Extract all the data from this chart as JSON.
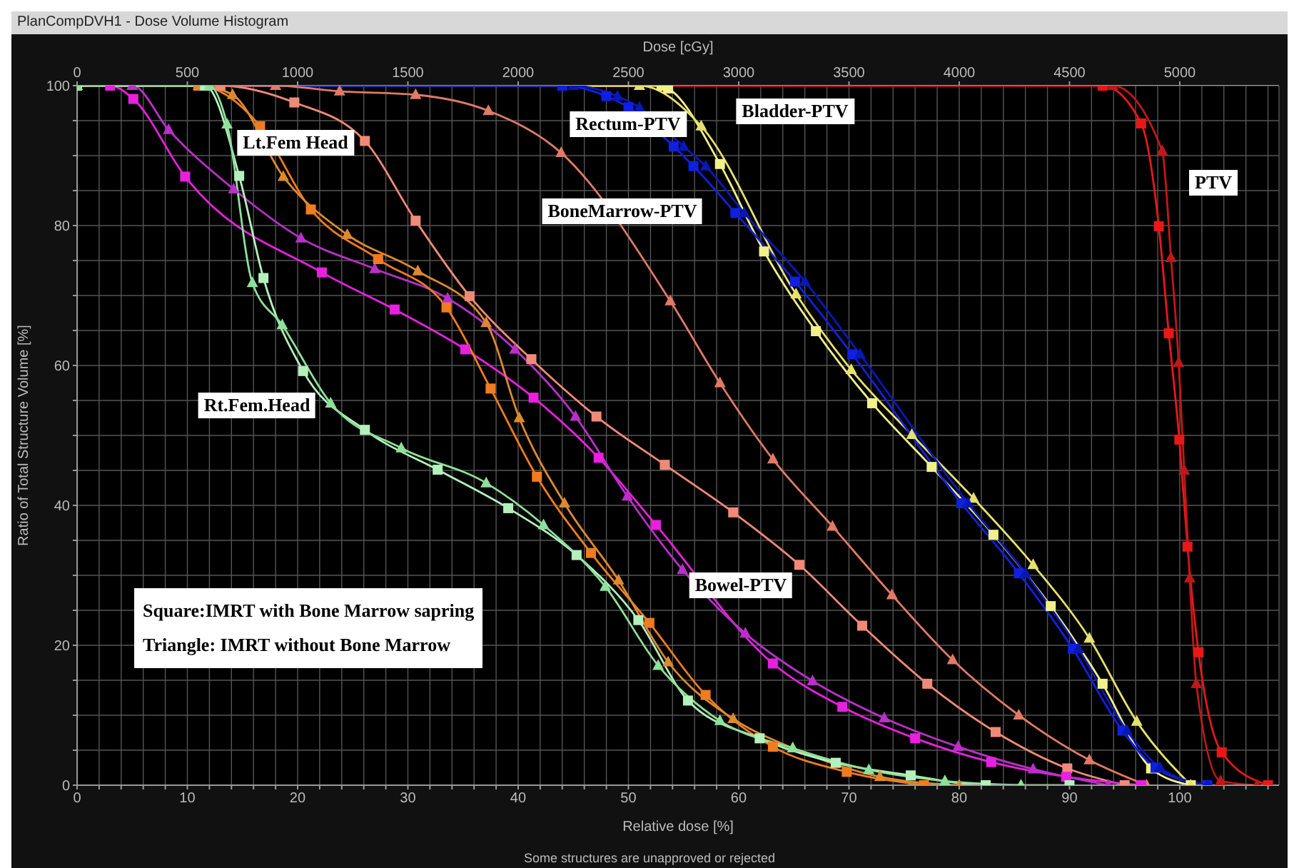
{
  "chart_data": {
    "type": "line",
    "title": "PlanCompDVH1 - Dose Volume Histogram",
    "xlabel": "Relative dose [%]",
    "x2label": "Dose [cGy]",
    "ylabel": "Ratio of Total Structure Volume [%]",
    "xlim": [
      0,
      109
    ],
    "ylim": [
      0,
      100
    ],
    "x2lim": [
      0,
      5450
    ],
    "xticks": [
      0,
      {
        "value": 2,
        "label": null
      },
      {
        "value": 4,
        "label": null
      },
      {
        "value": 6,
        "label": null
      },
      {
        "value": 8,
        "label": null
      },
      10,
      {
        "value": 12,
        "label": null
      },
      {
        "value": 14,
        "label": null
      },
      {
        "value": 16,
        "label": null
      },
      {
        "value": 18,
        "label": null
      },
      20,
      {
        "value": 22,
        "label": null
      },
      {
        "value": 24,
        "label": null
      },
      {
        "value": 26,
        "label": null
      },
      {
        "value": 28,
        "label": null
      },
      30,
      {
        "value": 32,
        "label": null
      },
      {
        "value": 34,
        "label": null
      },
      {
        "value": 36,
        "label": null
      },
      {
        "value": 38,
        "label": null
      },
      40,
      {
        "value": 42,
        "label": null
      },
      {
        "value": 44,
        "label": null
      },
      {
        "value": 46,
        "label": null
      },
      {
        "value": 48,
        "label": null
      },
      50,
      {
        "value": 52,
        "label": null
      },
      {
        "value": 54,
        "label": null
      },
      {
        "value": 56,
        "label": null
      },
      {
        "value": 58,
        "label": null
      },
      60,
      {
        "value": 62,
        "label": null
      },
      {
        "value": 64,
        "label": null
      },
      {
        "value": 66,
        "label": null
      },
      {
        "value": 68,
        "label": null
      },
      70,
      {
        "value": 72,
        "label": null
      },
      {
        "value": 74,
        "label": null
      },
      {
        "value": 76,
        "label": null
      },
      {
        "value": 78,
        "label": null
      },
      80,
      {
        "value": 82,
        "label": null
      },
      {
        "value": 84,
        "label": null
      },
      {
        "value": 86,
        "label": null
      },
      {
        "value": 88,
        "label": null
      },
      90,
      {
        "value": 92,
        "label": null
      },
      {
        "value": 94,
        "label": null
      },
      {
        "value": 96,
        "label": null
      },
      {
        "value": 98,
        "label": null
      },
      100,
      {
        "value": 102,
        "label": null
      },
      {
        "value": 104,
        "label": null
      },
      {
        "value": 106,
        "label": null
      },
      {
        "value": 108,
        "label": null
      }
    ],
    "x2ticks": [
      0,
      500,
      1000,
      1500,
      2000,
      2500,
      3000,
      3500,
      4000,
      4500,
      5000
    ],
    "yticks": [
      0,
      {
        "value": 5,
        "label": null
      },
      {
        "value": 10,
        "label": null
      },
      {
        "value": 15,
        "label": null
      },
      20,
      {
        "value": 25,
        "label": null
      },
      {
        "value": 30,
        "label": null
      },
      {
        "value": 35,
        "label": null
      },
      40,
      {
        "value": 45,
        "label": null
      },
      {
        "value": 50,
        "label": null
      },
      {
        "value": 55,
        "label": null
      },
      60,
      {
        "value": 65,
        "label": null
      },
      {
        "value": 70,
        "label": null
      },
      {
        "value": 75,
        "label": null
      },
      80,
      {
        "value": 85,
        "label": null
      },
      {
        "value": 90,
        "label": null
      },
      {
        "value": 95,
        "label": null
      },
      100
    ],
    "grid": true,
    "legend": false,
    "line_style": "solid",
    "series": [
      {
        "color": "#e81818",
        "marker": "square",
        "x": [
          0,
          93,
          96.5,
          98.1,
          99.0,
          99.96,
          100.7,
          101.7,
          103.8,
          108
        ],
        "values": [
          100,
          100,
          94.6,
          79.9,
          64.6,
          49.4,
          34.1,
          19,
          4.7,
          0
        ]
      },
      {
        "color": "#c01818",
        "marker": "triangle",
        "x": [
          0,
          93.9,
          98.4,
          99.2,
          99.9,
          100.4,
          100.9,
          101.5,
          103.7,
          107
        ],
        "values": [
          100,
          100,
          90.7,
          75.4,
          60.4,
          45,
          29.6,
          14.5,
          0.6,
          0
        ]
      },
      {
        "color": "#f2f08a",
        "marker": "square",
        "x": [
          0,
          53,
          53.6,
          58.3,
          62.3,
          67,
          72.1,
          77.5,
          83.1,
          88.3,
          93,
          97.4,
          101
        ],
        "values": [
          100,
          100,
          99.6,
          88.8,
          76.3,
          64.9,
          54.6,
          45.5,
          35.8,
          25.6,
          14.5,
          2.4,
          0
        ]
      },
      {
        "color": "#e6e070",
        "marker": "triangle",
        "x": [
          0,
          51,
          56.6,
          65.2,
          70.2,
          75.7,
          81.3,
          86.7,
          91.8,
          96.1,
          101
        ],
        "values": [
          100,
          100,
          94.2,
          70.2,
          59.4,
          50.1,
          41,
          31.5,
          21,
          9.1,
          0
        ]
      },
      {
        "color": "#1020e0",
        "marker": "square",
        "x": [
          0,
          44,
          48,
          50,
          54.1,
          55.9,
          59.7,
          65.1,
          70.3,
          80.2,
          85.4,
          90.3,
          94.8,
          97.8,
          102.5
        ],
        "values": [
          100,
          100,
          98.5,
          96.9,
          91.3,
          88.5,
          81.8,
          72,
          61.6,
          40.3,
          30.3,
          19.5,
          7.8,
          2.5,
          0
        ]
      },
      {
        "color": "#0818b8",
        "marker": "triangle",
        "x": [
          0,
          45,
          49,
          51,
          55,
          57,
          60.5,
          66,
          71,
          80.8,
          86,
          90.8,
          95.2,
          98.2,
          102.5
        ],
        "values": [
          100,
          100,
          98.5,
          96.9,
          91.3,
          88.5,
          81.8,
          72,
          61.6,
          40.3,
          30.3,
          19.5,
          7.8,
          2.5,
          0
        ]
      },
      {
        "color": "#f08a78",
        "marker": "square",
        "x": [
          0,
          13,
          19.7,
          26.1,
          30.7,
          35.6,
          41.2,
          47.1,
          53.3,
          59.5,
          65.5,
          71.2,
          77.1,
          83.3,
          89.8,
          95
        ],
        "values": [
          100,
          100,
          97.6,
          92.1,
          80.7,
          69.9,
          60.9,
          52.7,
          45.8,
          39,
          31.5,
          22.8,
          14.5,
          7.6,
          2.4,
          0
        ]
      },
      {
        "color": "#e07a66",
        "marker": "triangle",
        "x": [
          0,
          18,
          23.8,
          30.7,
          37.3,
          43.9,
          53.8,
          58.3,
          63.1,
          68.5,
          73.9,
          79.4,
          85.4,
          91.8,
          97
        ],
        "values": [
          100,
          100,
          99.2,
          98.7,
          96.4,
          90.4,
          69.2,
          57.5,
          46.6,
          37,
          27.2,
          17.9,
          10,
          3.6,
          0
        ]
      },
      {
        "color": "#e820e0",
        "marker": "square",
        "x": [
          0,
          3,
          5.1,
          9.8,
          22.2,
          28.8,
          35.2,
          41.4,
          47.3,
          52.5,
          63.1,
          69.4,
          76,
          82.9,
          89.7,
          96.5
        ],
        "values": [
          100,
          100,
          98.1,
          87,
          73.3,
          68,
          62.3,
          55.4,
          46.8,
          37.2,
          17.4,
          11.2,
          6.7,
          3.3,
          1.2,
          0
        ]
      },
      {
        "color": "#b830c8",
        "marker": "triangle",
        "x": [
          0,
          5,
          8.3,
          14.2,
          20.3,
          27,
          33.6,
          39.7,
          45.2,
          49.9,
          54.9,
          60.6,
          66.7,
          73.2,
          79.9,
          86.7,
          93.5
        ],
        "values": [
          100,
          100,
          93.7,
          85.2,
          78.2,
          73.8,
          69.6,
          62.3,
          52.7,
          41.3,
          30.8,
          21.7,
          14.9,
          9.6,
          5.5,
          2.3,
          0
        ]
      },
      {
        "color": "#f07c20",
        "marker": "square",
        "x": [
          0,
          11,
          16.6,
          21.2,
          27.3,
          33.5,
          37.5,
          41.7,
          46.6,
          51.9,
          57,
          63.1,
          69.8,
          76.8
        ],
        "values": [
          100,
          100,
          94.2,
          82.3,
          75.2,
          68.3,
          56.7,
          44.1,
          33.2,
          23.2,
          12.9,
          5.5,
          1.9,
          0
        ]
      },
      {
        "color": "#dc8a30",
        "marker": "triangle",
        "x": [
          0,
          11,
          14.1,
          18.7,
          24.5,
          30.9,
          37.1,
          40.1,
          44.2,
          49.1,
          53.6,
          59.5,
          64.9,
          72.8,
          80
        ],
        "values": [
          100,
          100,
          98.7,
          87,
          78.7,
          73.5,
          66.1,
          52.5,
          40.3,
          29.3,
          17.6,
          9.5,
          5.3,
          1.2,
          0
        ]
      },
      {
        "color": "#b4f0bc",
        "marker": "square",
        "x": [
          0,
          11.6,
          14.7,
          16.9,
          20.5,
          26.1,
          32.7,
          39.1,
          45.3,
          50.9,
          55.4,
          61.9,
          68.8,
          75.6,
          82.4,
          90
        ],
        "values": [
          100,
          100,
          87.1,
          72.5,
          59.2,
          50.8,
          45.1,
          39.6,
          32.9,
          23.6,
          12.1,
          6.7,
          3.2,
          1.4,
          0,
          0
        ]
      },
      {
        "color": "#8ee09a",
        "marker": "triangle",
        "x": [
          0,
          12,
          13.6,
          15.9,
          18.6,
          23,
          29.4,
          37.1,
          42.3,
          47.9,
          52.7,
          58.3,
          64.9,
          71.8,
          78.7,
          85.6
        ],
        "values": [
          100,
          100,
          94.5,
          71.8,
          65.8,
          54.6,
          48.2,
          43.2,
          37.2,
          28.4,
          17.1,
          9.2,
          5.3,
          2.2,
          0.6,
          0
        ]
      }
    ],
    "annotations": [
      "PTV",
      "Bladder-PTV",
      "Rectum-PTV",
      "BoneMarrow-PTV",
      "Lt.Fem Head",
      "Rt.Fem.Head",
      "Bowel-PTV",
      "Square:IMRT with Bone Marrow sapring",
      "Triangle: IMRT without Bone Marrow",
      "Some structures are unapproved or rejected"
    ]
  }
}
